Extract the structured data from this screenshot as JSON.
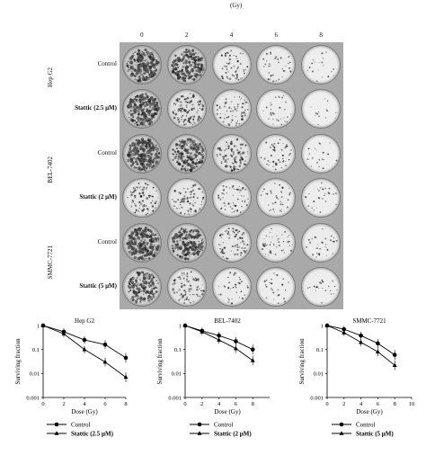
{
  "figure": {
    "dose_header": "(Gy)",
    "doses": [
      "0",
      "2",
      "4",
      "6",
      "8"
    ],
    "cell_lines": [
      {
        "name": "Hep G2",
        "rows": [
          {
            "label": "Control",
            "bold": false
          },
          {
            "label": "Stattic (2.5 μM)",
            "bold": true
          }
        ]
      },
      {
        "name": "BEL-7402",
        "rows": [
          {
            "label": "Control",
            "bold": false
          },
          {
            "label": "Stattic (2 μM)",
            "bold": true
          }
        ]
      },
      {
        "name": "SMMC-7721",
        "rows": [
          {
            "label": "Control",
            "bold": false
          },
          {
            "label": "Stattic (5 μM)",
            "bold": true
          }
        ]
      }
    ],
    "colony_density": [
      [
        0.95,
        0.78,
        0.18,
        0.12,
        0.05
      ],
      [
        0.85,
        0.4,
        0.22,
        0.1,
        0.03
      ],
      [
        0.95,
        0.72,
        0.35,
        0.15,
        0.05
      ],
      [
        0.3,
        0.25,
        0.18,
        0.12,
        0.08
      ],
      [
        0.92,
        0.75,
        0.25,
        0.15,
        0.1
      ],
      [
        0.7,
        0.3,
        0.12,
        0.08,
        0.06
      ]
    ]
  },
  "chart_data": [
    {
      "type": "line",
      "title": "Hep G2",
      "xlabel": "Dose (Gy)",
      "ylabel": "Surviving fraction",
      "xlim": [
        0,
        8
      ],
      "xticks": [
        "0",
        "2",
        "4",
        "6",
        "8"
      ],
      "yscale": "log",
      "ylim": [
        0.001,
        1
      ],
      "yticks": [
        "0.001",
        "0.01",
        "0.1",
        "1"
      ],
      "x": [
        0,
        2,
        4,
        6,
        8
      ],
      "series": [
        {
          "name": "Control",
          "marker": "circle",
          "values": [
            1,
            0.55,
            0.25,
            0.16,
            0.045
          ]
        },
        {
          "name": "Stattic (2.5 μM)",
          "marker": "triangle",
          "values": [
            1,
            0.45,
            0.1,
            0.03,
            0.007
          ]
        }
      ],
      "legend": "bottom"
    },
    {
      "type": "line",
      "title": "BEL-7402",
      "xlabel": "Dose (Gy)",
      "ylabel": "Surviving fraction",
      "xlim": [
        0,
        10
      ],
      "xticks": [
        "0",
        "2",
        "4",
        "6",
        "8"
      ],
      "yscale": "log",
      "ylim": [
        0.001,
        1
      ],
      "yticks": [
        "0.001",
        "0.01",
        "0.1",
        "1"
      ],
      "x": [
        0,
        2,
        4,
        6,
        8
      ],
      "series": [
        {
          "name": "Control",
          "marker": "circle",
          "values": [
            1,
            0.6,
            0.38,
            0.22,
            0.1
          ]
        },
        {
          "name": "Stattic (2 μM)",
          "marker": "triangle",
          "values": [
            1,
            0.55,
            0.25,
            0.11,
            0.035
          ]
        }
      ],
      "legend": "bottom"
    },
    {
      "type": "line",
      "title": "SMMC-7721",
      "xlabel": "Dose (Gy)",
      "ylabel": "Surviving fraction",
      "xlim": [
        0,
        10
      ],
      "xticks": [
        "0",
        "2",
        "4",
        "6",
        "8",
        "10"
      ],
      "yscale": "log",
      "ylim": [
        0.001,
        1
      ],
      "yticks": [
        "0.001",
        "0.01",
        "0.1",
        "1"
      ],
      "x": [
        0,
        2,
        4,
        6,
        8
      ],
      "series": [
        {
          "name": "Control",
          "marker": "circle",
          "values": [
            1,
            0.7,
            0.38,
            0.18,
            0.06
          ]
        },
        {
          "name": "Stattic (5 μM)",
          "marker": "triangle",
          "values": [
            1,
            0.5,
            0.2,
            0.08,
            0.022
          ]
        }
      ],
      "legend": "bottom"
    }
  ]
}
